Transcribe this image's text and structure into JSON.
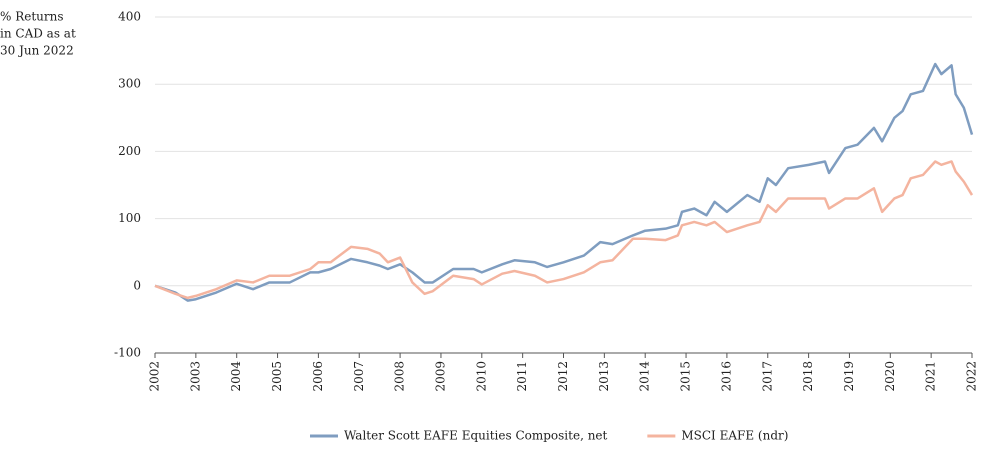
{
  "chart_data": {
    "type": "line",
    "y_label": [
      "% Returns",
      "in CAD as at",
      "30 Jun 2022"
    ],
    "x": [
      2002,
      2002.5,
      2002.8,
      2003,
      2003.5,
      2004,
      2004.4,
      2004.8,
      2005.3,
      2005.8,
      2006,
      2006.3,
      2006.8,
      2007.2,
      2007.5,
      2007.7,
      2008,
      2008.3,
      2008.6,
      2008.8,
      2009.3,
      2009.8,
      2010,
      2010.5,
      2010.8,
      2011.3,
      2011.6,
      2012,
      2012.5,
      2012.9,
      2013.2,
      2013.7,
      2014,
      2014.5,
      2014.8,
      2014.9,
      2015.2,
      2015.5,
      2015.7,
      2016,
      2016.5,
      2016.8,
      2017,
      2017.2,
      2017.5,
      2018,
      2018.4,
      2018.5,
      2018.9,
      2019.2,
      2019.6,
      2019.8,
      2020.1,
      2020.3,
      2020.5,
      2020.8,
      2021.1,
      2021.25,
      2021.5,
      2021.6,
      2021.8,
      2022
    ],
    "series": [
      {
        "name": "Walter Scott EAFE Equities Composite, net",
        "color": "#7f9dc0",
        "values": [
          0,
          -10,
          -22,
          -20,
          -10,
          3,
          -5,
          5,
          5,
          20,
          20,
          25,
          40,
          35,
          30,
          25,
          32,
          20,
          5,
          5,
          25,
          25,
          20,
          32,
          38,
          35,
          28,
          35,
          45,
          65,
          62,
          75,
          82,
          85,
          90,
          110,
          115,
          105,
          125,
          110,
          135,
          125,
          160,
          150,
          175,
          180,
          185,
          168,
          205,
          210,
          235,
          215,
          250,
          260,
          285,
          290,
          330,
          315,
          328,
          285,
          265,
          225
        ]
      },
      {
        "name": "MSCI EAFE (ndr)",
        "color": "#f4b49f",
        "values": [
          0,
          -12,
          -18,
          -15,
          -5,
          8,
          5,
          15,
          15,
          25,
          35,
          35,
          58,
          55,
          48,
          35,
          42,
          5,
          -12,
          -8,
          15,
          10,
          2,
          18,
          22,
          15,
          5,
          10,
          20,
          35,
          38,
          70,
          70,
          68,
          75,
          90,
          95,
          90,
          95,
          80,
          90,
          95,
          120,
          110,
          130,
          130,
          130,
          115,
          130,
          130,
          145,
          110,
          130,
          135,
          160,
          165,
          185,
          180,
          185,
          170,
          155,
          135
        ]
      }
    ],
    "xlim": [
      2002,
      2022
    ],
    "xticks": [
      2002,
      2003,
      2004,
      2005,
      2006,
      2007,
      2008,
      2009,
      2010,
      2011,
      2012,
      2013,
      2014,
      2015,
      2016,
      2017,
      2018,
      2019,
      2020,
      2021,
      2022
    ],
    "ylim": [
      -100,
      400
    ],
    "yticks": [
      -100,
      0,
      100,
      200,
      300,
      400
    ],
    "grid": true,
    "legend": "bottom"
  }
}
